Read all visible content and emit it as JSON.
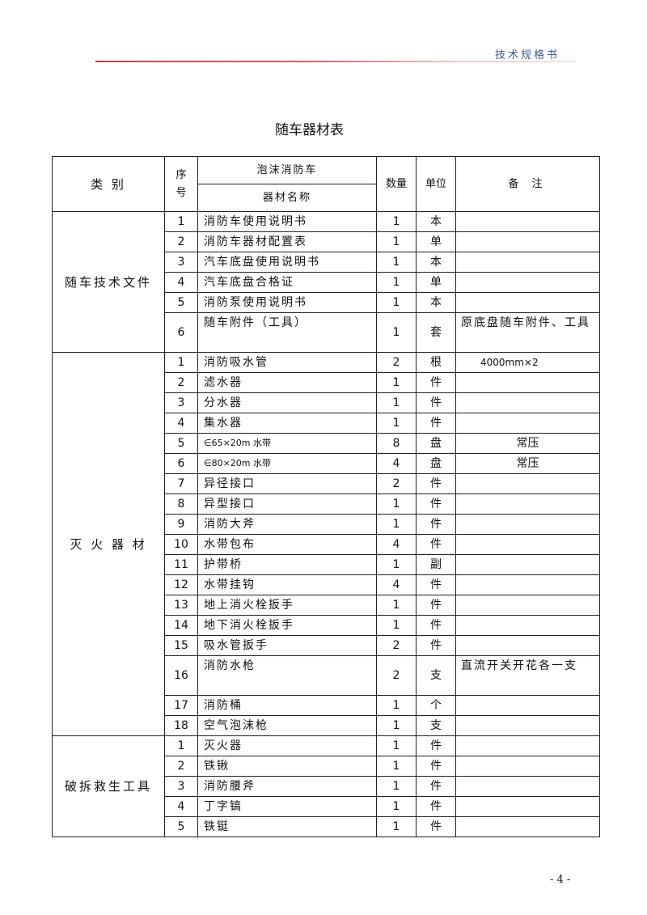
{
  "header": {
    "text": "技术规格书",
    "accent_color": "#3b5a9c",
    "line_color": "#c0404e"
  },
  "title": "随车器材表",
  "table": {
    "headers": {
      "category": "类 别",
      "seq": "序号",
      "vehicle": "泡沫消防车",
      "name": "器材名称",
      "qty": "数量",
      "unit": "单位",
      "note": "备 注"
    },
    "groups": [
      {
        "category": "随车技术文件",
        "rows": [
          {
            "seq": "1",
            "name": "消防车使用说明书",
            "qty": "1",
            "unit": "本",
            "note": ""
          },
          {
            "seq": "2",
            "name": "消防车器材配置表",
            "qty": "1",
            "unit": "单",
            "note": ""
          },
          {
            "seq": "3",
            "name": "汽车底盘使用说明书",
            "qty": "1",
            "unit": "本",
            "note": ""
          },
          {
            "seq": "4",
            "name": "汽车底盘合格证",
            "qty": "1",
            "unit": "单",
            "note": ""
          },
          {
            "seq": "5",
            "name": "消防泵使用说明书",
            "qty": "1",
            "unit": "本",
            "note": ""
          },
          {
            "seq": "6",
            "name": "随车附件（工具）",
            "qty": "1",
            "unit": "套",
            "note": "原底盘随车附件、工具"
          }
        ]
      },
      {
        "category": "灭 火 器 材",
        "rows": [
          {
            "seq": "1",
            "name": "消防吸水管",
            "qty": "2",
            "unit": "根",
            "note": "4000mm×2"
          },
          {
            "seq": "2",
            "name": "滤水器",
            "qty": "1",
            "unit": "件",
            "note": ""
          },
          {
            "seq": "3",
            "name": "分水器",
            "qty": "1",
            "unit": "件",
            "note": ""
          },
          {
            "seq": "4",
            "name": "集水器",
            "qty": "1",
            "unit": "件",
            "note": ""
          },
          {
            "seq": "5",
            "name": "∈65×20m 水带",
            "qty": "8",
            "unit": "盘",
            "note": "常压"
          },
          {
            "seq": "6",
            "name": "∈80×20m 水带",
            "qty": "4",
            "unit": "盘",
            "note": "常压"
          },
          {
            "seq": "7",
            "name": "异径接口",
            "qty": "2",
            "unit": "件",
            "note": ""
          },
          {
            "seq": "8",
            "name": "异型接口",
            "qty": "1",
            "unit": "件",
            "note": ""
          },
          {
            "seq": "9",
            "name": "消防大斧",
            "qty": "1",
            "unit": "件",
            "note": ""
          },
          {
            "seq": "10",
            "name": "水带包布",
            "qty": "4",
            "unit": "件",
            "note": ""
          },
          {
            "seq": "11",
            "name": "护带桥",
            "qty": "1",
            "unit": "副",
            "note": ""
          },
          {
            "seq": "12",
            "name": "水带挂钩",
            "qty": "4",
            "unit": "件",
            "note": ""
          },
          {
            "seq": "13",
            "name": "地上消火栓扳手",
            "qty": "1",
            "unit": "件",
            "note": ""
          },
          {
            "seq": "14",
            "name": "地下消火栓扳手",
            "qty": "1",
            "unit": "件",
            "note": ""
          },
          {
            "seq": "15",
            "name": "吸水管扳手",
            "qty": "2",
            "unit": "件",
            "note": ""
          },
          {
            "seq": "16",
            "name": "消防水枪",
            "qty": "2",
            "unit": "支",
            "note": "直流开关开花各一支"
          },
          {
            "seq": "17",
            "name": "消防桶",
            "qty": "1",
            "unit": "个",
            "note": ""
          },
          {
            "seq": "18",
            "name": "空气泡沫枪",
            "qty": "1",
            "unit": "支",
            "note": ""
          }
        ]
      },
      {
        "category": "破拆救生工具",
        "rows": [
          {
            "seq": "1",
            "name": "灭火器",
            "qty": "1",
            "unit": "件",
            "note": ""
          },
          {
            "seq": "2",
            "name": "铁锹",
            "qty": "1",
            "unit": "件",
            "note": ""
          },
          {
            "seq": "3",
            "name": "消防腰斧",
            "qty": "1",
            "unit": "件",
            "note": ""
          },
          {
            "seq": "4",
            "name": "丁字镐",
            "qty": "1",
            "unit": "件",
            "note": ""
          },
          {
            "seq": "5",
            "name": "铁铤",
            "qty": "1",
            "unit": "件",
            "note": ""
          }
        ]
      }
    ]
  },
  "page_number": "- 4 -"
}
